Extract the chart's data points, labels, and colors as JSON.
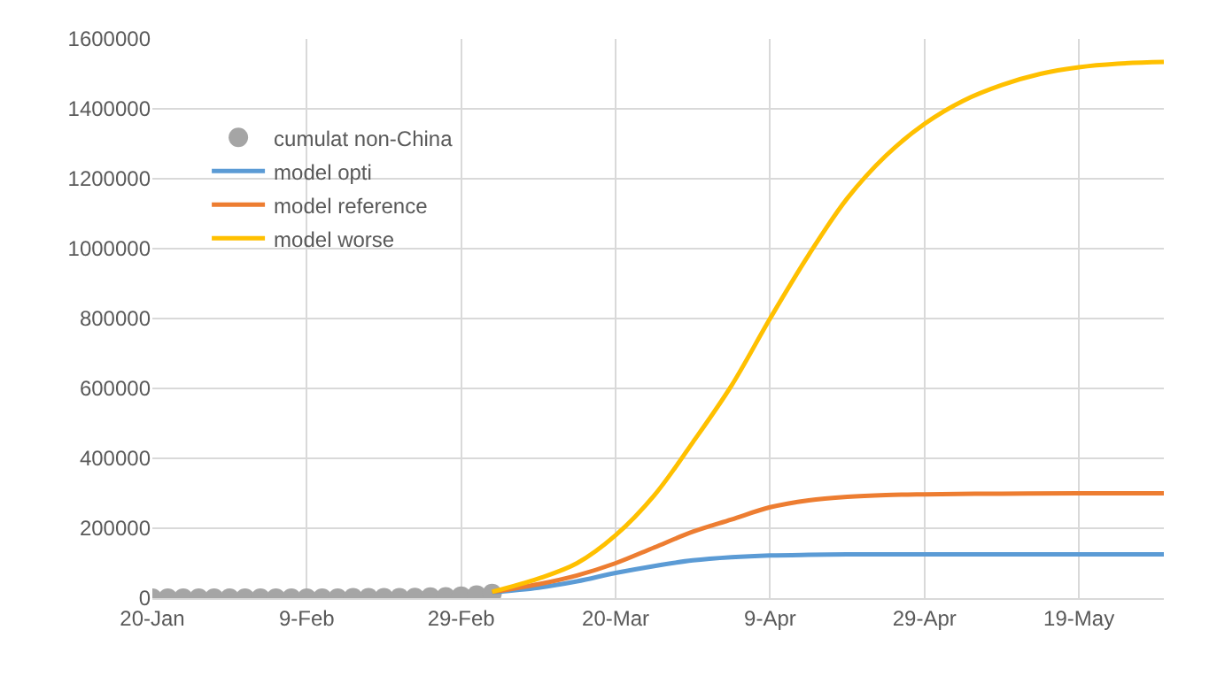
{
  "chart_data": {
    "type": "line",
    "xlim": [
      "--01-20",
      "--05-30"
    ],
    "xticks": [
      {
        "value": "--01-20",
        "label": "20-Jan"
      },
      {
        "value": "--02-09",
        "label": "9-Feb"
      },
      {
        "value": "--02-29",
        "label": "29-Feb"
      },
      {
        "value": "--03-20",
        "label": "20-Mar"
      },
      {
        "value": "--04-09",
        "label": "9-Apr"
      },
      {
        "value": "--04-29",
        "label": "29-Apr"
      },
      {
        "value": "--05-19",
        "label": "19-May"
      }
    ],
    "ylim": [
      0,
      1600000
    ],
    "yticks": [
      0,
      200000,
      400000,
      600000,
      800000,
      1000000,
      1200000,
      1400000,
      1600000
    ],
    "grid": true,
    "legend": "top left",
    "series": [
      {
        "name": "cumulat non-China",
        "type": "scatter",
        "color": "#a5a5a5",
        "x": [
          "--01-20",
          "--01-22",
          "--01-24",
          "--01-26",
          "--01-28",
          "--01-30",
          "--02-01",
          "--02-03",
          "--02-05",
          "--02-07",
          "--02-09",
          "--02-11",
          "--02-13",
          "--02-15",
          "--02-17",
          "--02-19",
          "--02-21",
          "--02-23",
          "--02-25",
          "--02-27",
          "--02-29",
          "--03-02",
          "--03-04"
        ],
        "values": [
          0,
          0,
          0,
          0,
          0,
          0,
          0,
          0,
          0,
          0,
          0,
          0,
          0,
          1000,
          1000,
          1000,
          1000,
          2000,
          3000,
          4000,
          6000,
          9000,
          13000
        ]
      },
      {
        "name": "model opti",
        "color": "#5b9bd5",
        "x": [
          "--03-04",
          "--03-10",
          "--03-15",
          "--03-20",
          "--03-25",
          "--03-30",
          "--04-04",
          "--04-09",
          "--04-14",
          "--04-19",
          "--04-24",
          "--04-29",
          "--05-09",
          "--05-19",
          "--05-30"
        ],
        "values": [
          17000,
          30000,
          48000,
          72000,
          92000,
          108000,
          117000,
          122000,
          124000,
          125000,
          125000,
          125000,
          125000,
          125000,
          125000
        ]
      },
      {
        "name": "model reference",
        "color": "#ed7d31",
        "x": [
          "--03-04",
          "--03-10",
          "--03-15",
          "--03-20",
          "--03-25",
          "--03-30",
          "--04-04",
          "--04-09",
          "--04-14",
          "--04-19",
          "--04-24",
          "--04-29",
          "--05-09",
          "--05-19",
          "--05-30"
        ],
        "values": [
          18000,
          40000,
          65000,
          100000,
          145000,
          190000,
          225000,
          260000,
          280000,
          290000,
          295000,
          297000,
          299000,
          300000,
          300000
        ]
      },
      {
        "name": "model worse",
        "color": "#ffc000",
        "x": [
          "--03-04",
          "--03-10",
          "--03-15",
          "--03-20",
          "--03-25",
          "--03-30",
          "--04-04",
          "--04-09",
          "--04-14",
          "--04-19",
          "--04-24",
          "--04-29",
          "--05-04",
          "--05-09",
          "--05-14",
          "--05-19",
          "--05-24",
          "--05-30"
        ],
        "values": [
          18000,
          56000,
          100000,
          180000,
          294000,
          446000,
          608000,
          800000,
          982000,
          1144000,
          1266000,
          1357000,
          1423000,
          1468000,
          1500000,
          1519000,
          1529000,
          1534000
        ]
      }
    ]
  }
}
